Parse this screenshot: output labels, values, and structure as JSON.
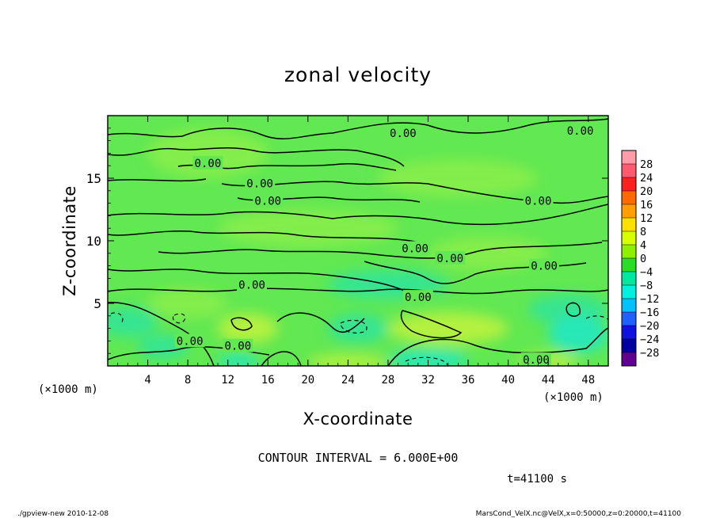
{
  "chart_data": {
    "type": "heatmap",
    "title": "zonal velocity",
    "xlabel": "X-coordinate",
    "ylabel": "Z-coordinate",
    "x_unit": "(×1000 m)",
    "y_unit": "(×1000 m)",
    "xlim": [
      0,
      50
    ],
    "ylim": [
      0,
      20
    ],
    "x_ticks": [
      "4",
      "8",
      "12",
      "16",
      "20",
      "24",
      "28",
      "32",
      "36",
      "40",
      "44",
      "48"
    ],
    "y_ticks": [
      "5",
      "10",
      "15"
    ],
    "contour_interval_text": "CONTOUR INTERVAL = 6.000E+00",
    "contour_labels": [
      {
        "text": "0.00",
        "x": 29.5,
        "z": 18.6
      },
      {
        "text": "0.00",
        "x": 47.2,
        "z": 18.8
      },
      {
        "text": "0.00",
        "x": 10.0,
        "z": 16.2
      },
      {
        "text": "0.00",
        "x": 15.2,
        "z": 14.6
      },
      {
        "text": "0.00",
        "x": 16.0,
        "z": 13.2
      },
      {
        "text": "0.00",
        "x": 43.0,
        "z": 13.2
      },
      {
        "text": "0.00",
        "x": 30.7,
        "z": 9.4
      },
      {
        "text": "0.00",
        "x": 34.2,
        "z": 8.6
      },
      {
        "text": "0.00",
        "x": 43.6,
        "z": 8.0
      },
      {
        "text": "0.00",
        "x": 14.4,
        "z": 6.5
      },
      {
        "text": "0.00",
        "x": 31.0,
        "z": 5.5
      },
      {
        "text": "0.00",
        "x": 8.2,
        "z": 2.0
      },
      {
        "text": "0.00",
        "x": 13.0,
        "z": 1.6
      },
      {
        "text": "0.00",
        "x": 42.8,
        "z": 0.5
      }
    ],
    "colorbar": {
      "labels": [
        "28",
        "24",
        "20",
        "16",
        "12",
        "8",
        "4",
        "0",
        "−4",
        "−8",
        "−12",
        "−16",
        "−20",
        "−24",
        "−28"
      ],
      "colors": [
        "#ff9ca8",
        "#ff5a6e",
        "#ff2020",
        "#ff6a00",
        "#ffa000",
        "#ffe000",
        "#d8ff00",
        "#8cf000",
        "#28dc28",
        "#00e8a0",
        "#00f0e0",
        "#00c0ff",
        "#2060ff",
        "#1010e0",
        "#0000a0",
        "#600090"
      ]
    },
    "field_colors": {
      "base": "#62e852",
      "light": "#8aef4a",
      "teal": "#2ee49c",
      "cyan": "#22e8c8",
      "yellow_green": "#c2f23c"
    }
  },
  "time_text": "t=41100 s",
  "footer_left": "./gpview-new  2010-12-08",
  "footer_right": "MarsCond_VelX.nc@VelX,x=0:50000,z=0:20000,t=41100"
}
